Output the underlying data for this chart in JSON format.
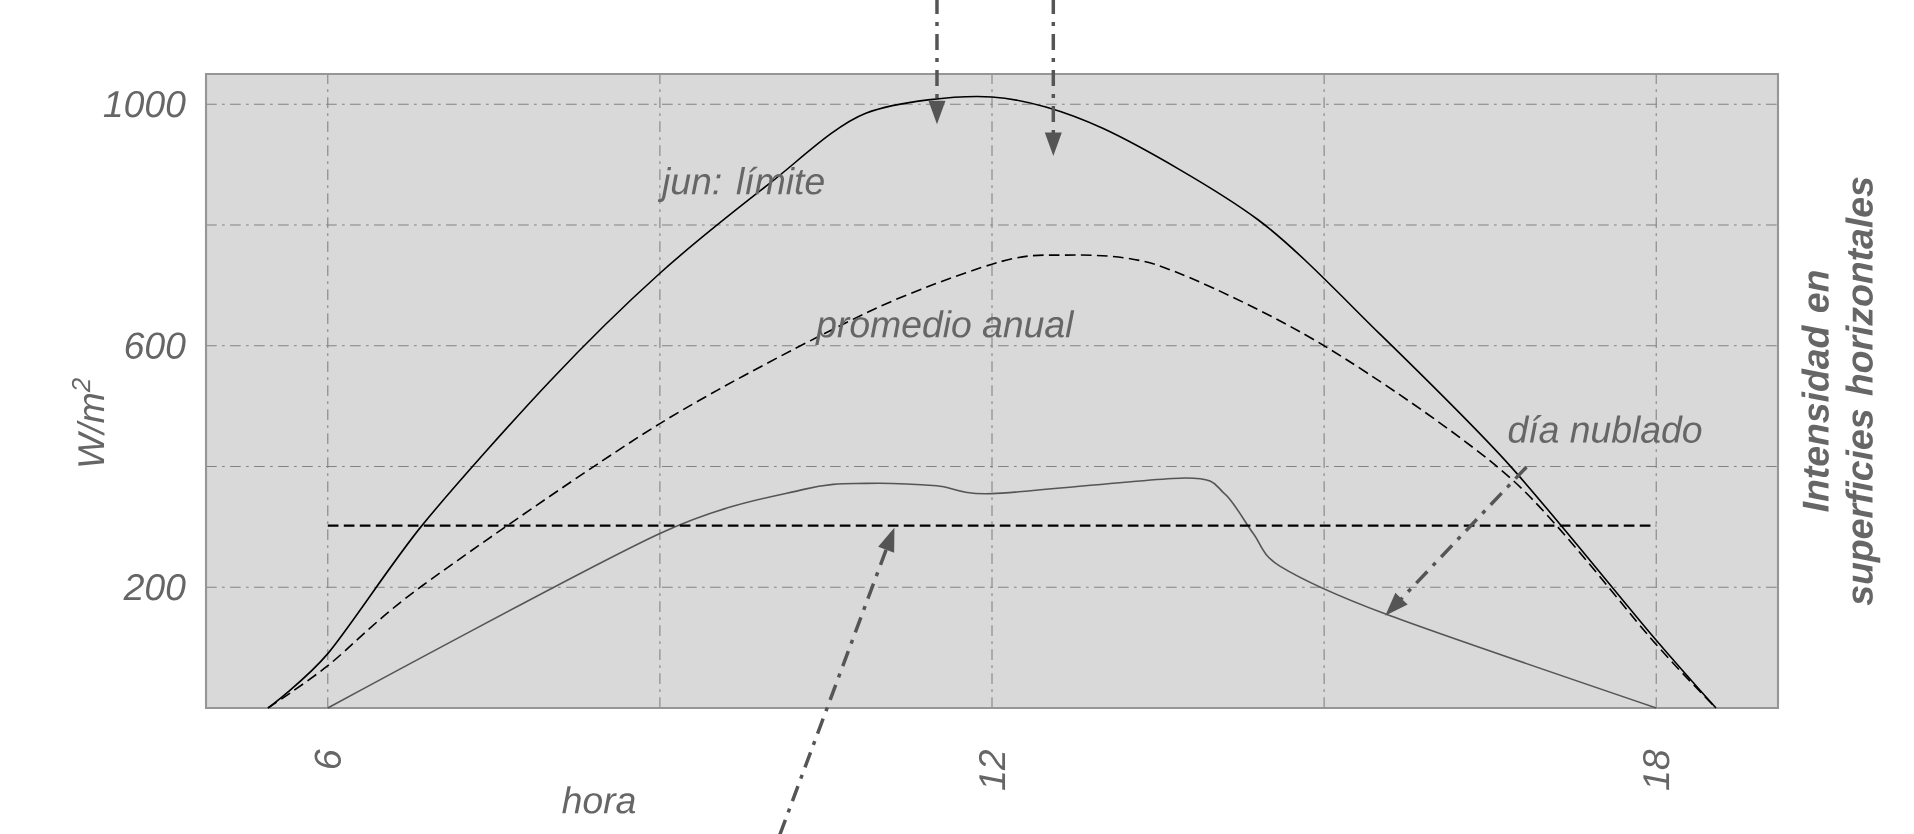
{
  "chart_data": {
    "type": "line",
    "xlabel": "hora",
    "ylabel": "W/m$^{2}$",
    "y2label": "Intensidad en superficies horizontales",
    "xlim": [
      4.9,
      19.1
    ],
    "ylim": [
      0,
      1050
    ],
    "xticks": [
      6,
      {
        "value": 9,
        "label": null
      },
      12,
      {
        "value": 15,
        "label": null
      },
      18
    ],
    "yticks": [
      {
        "value": 0,
        "label": null
      },
      200,
      {
        "value": 400,
        "label": null
      },
      600,
      {
        "value": 800,
        "label": null
      },
      1000
    ],
    "grid": true,
    "marker": "none",
    "series": [
      {
        "name": "jun: límite",
        "color": "#000000",
        "line_style": "solid",
        "x": [
          5.46,
          6,
          6.85,
          8,
          9,
          10,
          10.86,
          12,
          13,
          14.4,
          15.5,
          16.68,
          17.95,
          18.54
        ],
        "values": [
          0,
          90,
          302,
          540,
          720,
          870,
          985,
          1012,
          960,
          809,
          620,
          401,
          123,
          0
        ]
      },
      {
        "name": "promedio anual",
        "color": "#000000",
        "line_style": "dashed",
        "x": [
          5.46,
          6,
          6.85,
          9,
          10.86,
          12,
          12.56,
          13.5,
          15,
          16.7,
          18,
          18.54
        ],
        "values": [
          0,
          70,
          202,
          471,
          654,
          735,
          750,
          733,
          600,
          378,
          105,
          0
        ]
      },
      {
        "name": "día nublado",
        "color": "#555555",
        "line_style": "solid",
        "x": [
          6,
          9,
          10.3,
          10.86,
          11.5,
          12,
          13.75,
          14.1,
          14.36,
          14.6,
          15.55,
          18
        ],
        "values": [
          0,
          289,
          362,
          372,
          368,
          355,
          381,
          355,
          289,
          235,
          156,
          0
        ]
      },
      {
        "color": "#000000",
        "line_style": "dashed",
        "x": [
          6,
          18
        ],
        "values": [
          302,
          302
        ]
      }
    ]
  }
}
